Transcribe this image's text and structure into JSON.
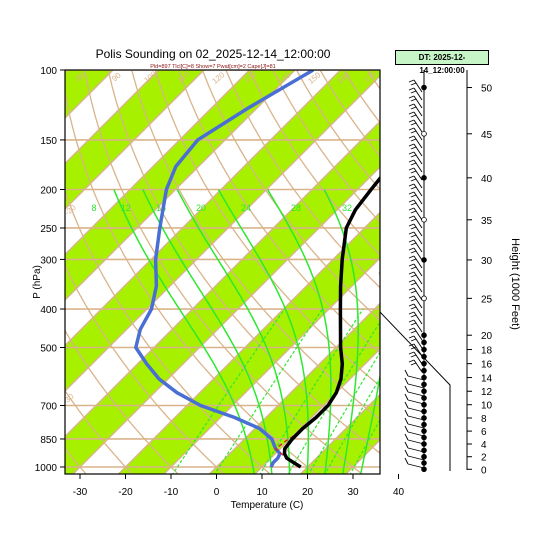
{
  "chart_data": {
    "type": "skew-t",
    "title": "Polis Sounding on 02_2025-12-14_12:00:00",
    "subtitle": "Pld=897 Tlcl[C]=8 Show=7 Pwat[cm]=2 Cape[J]=81",
    "dt_label": "DT: 2025-12-14_12:00:00",
    "xlabel": "Temperature (C)",
    "ylabel": "P (hPa)",
    "y2label": "Height (1000 Feet)",
    "x_ticks": [
      -30,
      -20,
      -10,
      0,
      10,
      20,
      30,
      40
    ],
    "p_ticks": [
      100,
      150,
      200,
      250,
      300,
      400,
      500,
      700,
      850,
      1000
    ],
    "height_ticks": [
      0,
      2,
      4,
      6,
      8,
      10,
      12,
      14,
      16,
      18,
      20,
      25,
      30,
      35,
      40,
      45,
      50
    ],
    "mixing_ratio_labels": [
      "8",
      "12",
      "16",
      "20",
      "24",
      "28",
      "32"
    ],
    "dry_adiabat_labels": [
      "80",
      "90",
      "100",
      "110",
      "120",
      "130",
      "140",
      "150",
      "160",
      "170",
      "20",
      "-10",
      "0",
      "10",
      "-20",
      "-30"
    ],
    "temperature_profile": [
      {
        "p": 1000,
        "t": 18.5
      },
      {
        "p": 975,
        "t": 16
      },
      {
        "p": 950,
        "t": 13.5
      },
      {
        "p": 925,
        "t": 12
      },
      {
        "p": 900,
        "t": 11
      },
      {
        "p": 850,
        "t": 10.5
      },
      {
        "p": 800,
        "t": 10.5
      },
      {
        "p": 750,
        "t": 11
      },
      {
        "p": 700,
        "t": 11
      },
      {
        "p": 650,
        "t": 10
      },
      {
        "p": 600,
        "t": 8
      },
      {
        "p": 550,
        "t": 5
      },
      {
        "p": 500,
        "t": 1
      },
      {
        "p": 450,
        "t": -3
      },
      {
        "p": 400,
        "t": -7.5
      },
      {
        "p": 350,
        "t": -12.5
      },
      {
        "p": 300,
        "t": -18
      },
      {
        "p": 250,
        "t": -24
      },
      {
        "p": 225,
        "t": -26
      },
      {
        "p": 200,
        "t": -27
      },
      {
        "p": 175,
        "t": -28
      },
      {
        "p": 150,
        "t": -30.5
      },
      {
        "p": 125,
        "t": -34
      },
      {
        "p": 100,
        "t": -38
      }
    ],
    "dewpoint_profile": [
      {
        "p": 1000,
        "t": 12
      },
      {
        "p": 975,
        "t": 11.5
      },
      {
        "p": 950,
        "t": 11.5
      },
      {
        "p": 925,
        "t": 11
      },
      {
        "p": 900,
        "t": 9
      },
      {
        "p": 850,
        "t": 6
      },
      {
        "p": 800,
        "t": 1
      },
      {
        "p": 750,
        "t": -7
      },
      {
        "p": 700,
        "t": -17
      },
      {
        "p": 650,
        "t": -25
      },
      {
        "p": 600,
        "t": -32
      },
      {
        "p": 550,
        "t": -38
      },
      {
        "p": 500,
        "t": -44
      },
      {
        "p": 450,
        "t": -47
      },
      {
        "p": 400,
        "t": -49
      },
      {
        "p": 350,
        "t": -53
      },
      {
        "p": 300,
        "t": -59
      },
      {
        "p": 250,
        "t": -65
      },
      {
        "p": 200,
        "t": -72
      },
      {
        "p": 175,
        "t": -75
      },
      {
        "p": 150,
        "t": -76
      },
      {
        "p": 125,
        "t": -72
      },
      {
        "p": 100,
        "t": -66
      }
    ],
    "parcel_profile": [
      {
        "p": 1000,
        "t": 18.5
      },
      {
        "p": 950,
        "t": 13.5
      },
      {
        "p": 900,
        "t": 9
      },
      {
        "p": 860,
        "t": 9.5
      },
      {
        "p": 820,
        "t": 10.5
      },
      {
        "p": 780,
        "t": 11
      },
      {
        "p": 740,
        "t": 10.5
      }
    ],
    "colors": {
      "temperature": "#000000",
      "dewpoint": "#4a6fd4",
      "parcel": "#e02020",
      "isotherm_band": "#a6f000",
      "dry_adiabat": "#d9b48a",
      "isotherm": "#d9b48a",
      "moist_adiabat": "#2ee82e",
      "mixing_ratio": "#2ee82e"
    }
  }
}
